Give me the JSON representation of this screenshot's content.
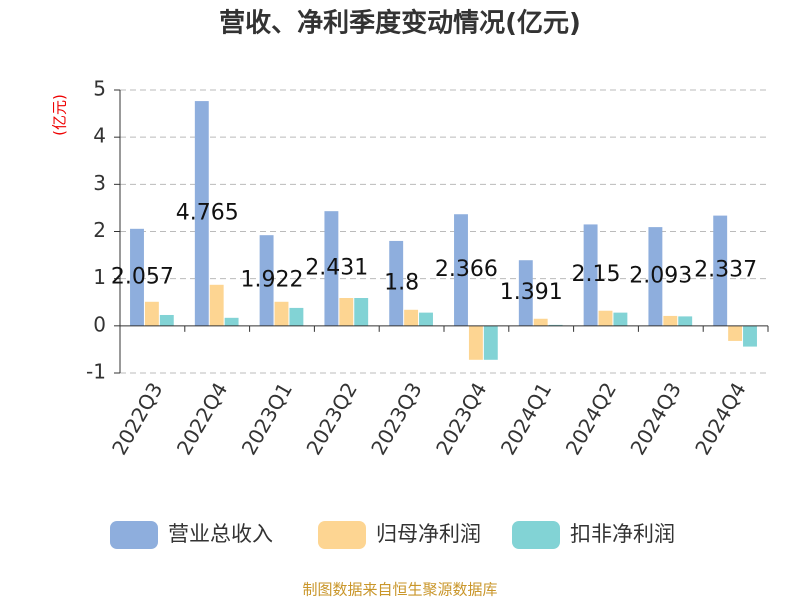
{
  "chart_data": {
    "type": "bar",
    "title": "营收、净利季度变动情况(亿元)",
    "y_label": "(亿元)",
    "source": "制图数据来自恒生聚源数据库",
    "categories": [
      "2022Q3",
      "2022Q4",
      "2023Q1",
      "2023Q2",
      "2023Q3",
      "2023Q4",
      "2024Q1",
      "2024Q2",
      "2024Q3",
      "2024Q4"
    ],
    "series": [
      {
        "name": "营业总收入",
        "color": "#8eaedd",
        "values": [
          2.057,
          4.765,
          1.922,
          2.431,
          1.8,
          2.366,
          1.391,
          2.15,
          2.093,
          2.337
        ],
        "show_labels": true
      },
      {
        "name": "归母净利润",
        "color": "#fdd592",
        "values": [
          0.51,
          0.87,
          0.51,
          0.59,
          0.34,
          -0.72,
          0.15,
          0.32,
          0.21,
          -0.32
        ]
      },
      {
        "name": "扣非净利润",
        "color": "#82d3d5",
        "values": [
          0.23,
          0.17,
          0.38,
          0.59,
          0.28,
          -0.72,
          0.02,
          0.28,
          0.2,
          -0.44
        ]
      }
    ],
    "ylim": [
      -1,
      5
    ],
    "yticks": [
      -1,
      0,
      1,
      2,
      3,
      4,
      5
    ],
    "grid": true
  }
}
